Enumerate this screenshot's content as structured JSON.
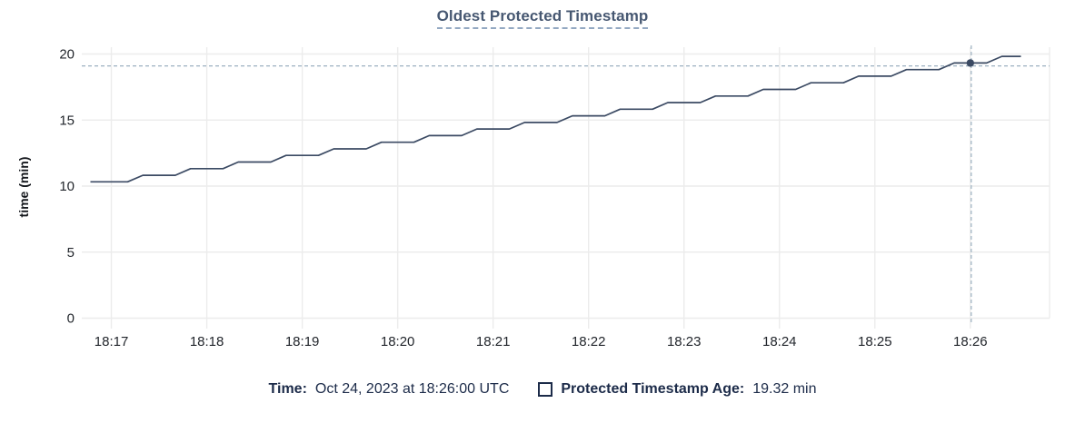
{
  "title": "Oldest Protected Timestamp",
  "colors": {
    "title": "#475872",
    "title_underline": "#93a8c2",
    "series_line": "#3b4a63",
    "hover_dot": "#3b4a63",
    "crosshair": "#9cb0c0",
    "gridline": "#ececec",
    "tick_label": "#22262c",
    "axis_title": "#15181d",
    "legend_text": "#1c2b49",
    "background": "#ffffff"
  },
  "chart_data": {
    "type": "line",
    "title": "Oldest Protected Timestamp",
    "xlabel": "",
    "ylabel": "time (min)",
    "grid": true,
    "legend_position": "bottom",
    "x_ticks": [
      "18:17",
      "18:18",
      "18:19",
      "18:20",
      "18:21",
      "18:22",
      "18:23",
      "18:24",
      "18:25",
      "18:26"
    ],
    "x_tick_minutes": [
      17,
      18,
      19,
      20,
      21,
      22,
      23,
      24,
      25,
      26
    ],
    "y_ticks": [
      0,
      5,
      10,
      15,
      20
    ],
    "ylim": [
      0,
      20
    ],
    "xlim_minutes": [
      16.69,
      26.83
    ],
    "series": [
      {
        "name": "Protected Timestamp Age",
        "unit": "min",
        "points_min_value": [
          [
            16.78,
            10.32
          ],
          [
            17.17,
            10.32
          ],
          [
            17.33,
            10.82
          ],
          [
            17.67,
            10.82
          ],
          [
            17.83,
            11.32
          ],
          [
            18.17,
            11.32
          ],
          [
            18.33,
            11.82
          ],
          [
            18.67,
            11.82
          ],
          [
            18.83,
            12.32
          ],
          [
            19.17,
            12.32
          ],
          [
            19.33,
            12.82
          ],
          [
            19.67,
            12.82
          ],
          [
            19.83,
            13.32
          ],
          [
            20.17,
            13.32
          ],
          [
            20.33,
            13.82
          ],
          [
            20.67,
            13.82
          ],
          [
            20.83,
            14.32
          ],
          [
            21.17,
            14.32
          ],
          [
            21.33,
            14.82
          ],
          [
            21.67,
            14.82
          ],
          [
            21.83,
            15.32
          ],
          [
            22.17,
            15.32
          ],
          [
            22.33,
            15.82
          ],
          [
            22.67,
            15.82
          ],
          [
            22.83,
            16.32
          ],
          [
            23.17,
            16.32
          ],
          [
            23.33,
            16.82
          ],
          [
            23.67,
            16.82
          ],
          [
            23.83,
            17.32
          ],
          [
            24.17,
            17.32
          ],
          [
            24.33,
            17.82
          ],
          [
            24.67,
            17.82
          ],
          [
            24.83,
            18.32
          ],
          [
            25.17,
            18.32
          ],
          [
            25.33,
            18.82
          ],
          [
            25.67,
            18.82
          ],
          [
            25.83,
            19.32
          ],
          [
            26.17,
            19.32
          ],
          [
            26.33,
            19.82
          ],
          [
            26.53,
            19.82
          ]
        ]
      }
    ],
    "hover": {
      "x_minute": 26.0,
      "value": 19.32,
      "cursor_value": 19.1,
      "time_label": "Oct 24, 2023 at 18:26:00 UTC"
    }
  },
  "legend": {
    "time_label": "Time:",
    "time_value": "Oct 24, 2023 at 18:26:00 UTC",
    "series_label": "Protected Timestamp Age:",
    "series_value": "19.32 min"
  }
}
